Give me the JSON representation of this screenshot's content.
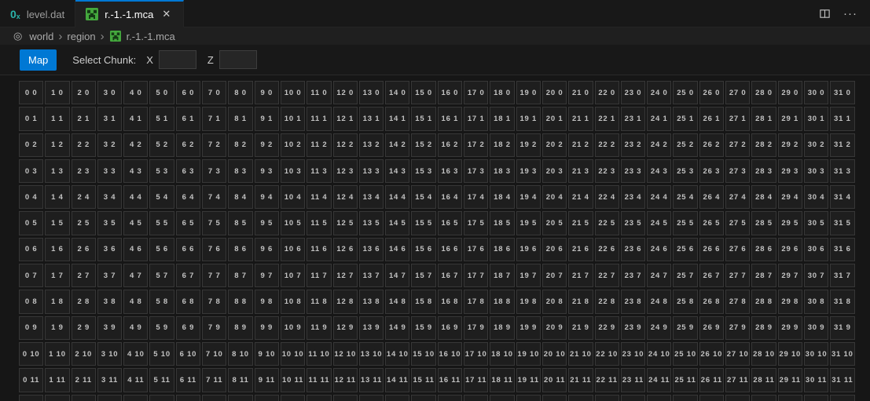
{
  "tabbar": {
    "tabs": [
      {
        "label": "level.dat",
        "icon": "nbt-hex-icon",
        "active": false
      },
      {
        "label": "r.-1.-1.mca",
        "icon": "creeper-file-icon",
        "active": true,
        "close_glyph": "✕"
      }
    ],
    "actions": {
      "split_editor": "split-editor-icon",
      "more_glyph": "···"
    }
  },
  "icons": {
    "nbt_main": "0",
    "nbt_sub": "x",
    "breadcrumb_root_glyph": "◎"
  },
  "breadcrumb": {
    "separator": "›",
    "items": [
      "world",
      "region",
      "r.-1.-1.mca"
    ]
  },
  "toolbar": {
    "map_button": "Map",
    "select_chunk_label": "Select Chunk:",
    "x_label": "X",
    "x_value": "",
    "z_label": "Z",
    "z_value": ""
  },
  "grid": {
    "cols": 32,
    "rows": 13,
    "visible_full_rows": 12,
    "label_format": "{x} {z}",
    "first_label": "0 0",
    "last_full_label": "31 11"
  },
  "colors": {
    "accent_blue": "#0078d4",
    "nbt_icon_teal": "#2bb3aa",
    "creeper_green": "#44a83d",
    "tab_active_text": "#ffffff",
    "tab_inactive_text": "#9d9d9d",
    "cell_background": "#1e1e1e",
    "cell_border": "#373737",
    "cell_text": "#c2c2c2",
    "page_background": "#161616"
  }
}
